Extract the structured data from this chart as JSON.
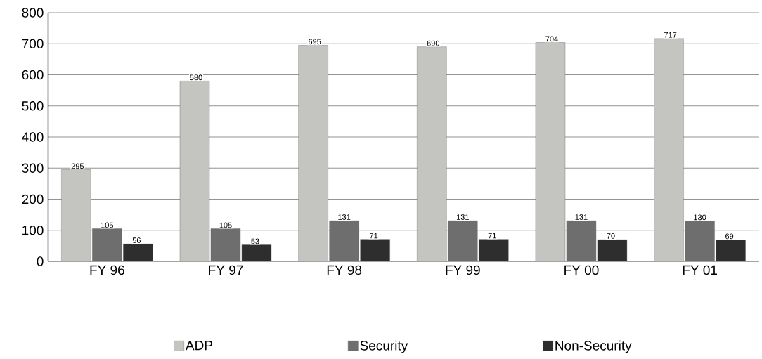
{
  "chart_data": {
    "type": "bar",
    "categories": [
      "FY 96",
      "FY 97",
      "FY 98",
      "FY 99",
      "FY 00",
      "FY 01"
    ],
    "series": [
      {
        "name": "ADP",
        "color": "#c4c4c0",
        "values": [
          295,
          580,
          695,
          690,
          704,
          717
        ]
      },
      {
        "name": "Security",
        "color": "#6e6e6e",
        "values": [
          105,
          105,
          131,
          131,
          131,
          130
        ]
      },
      {
        "name": "Non-Security",
        "color": "#2e2e2e",
        "values": [
          56,
          53,
          71,
          71,
          70,
          69
        ]
      }
    ],
    "ylim": [
      0,
      800
    ],
    "yticks": [
      0,
      100,
      200,
      300,
      400,
      500,
      600,
      700,
      800
    ],
    "grid": "y",
    "legend": "bottom",
    "data_labels": true
  }
}
